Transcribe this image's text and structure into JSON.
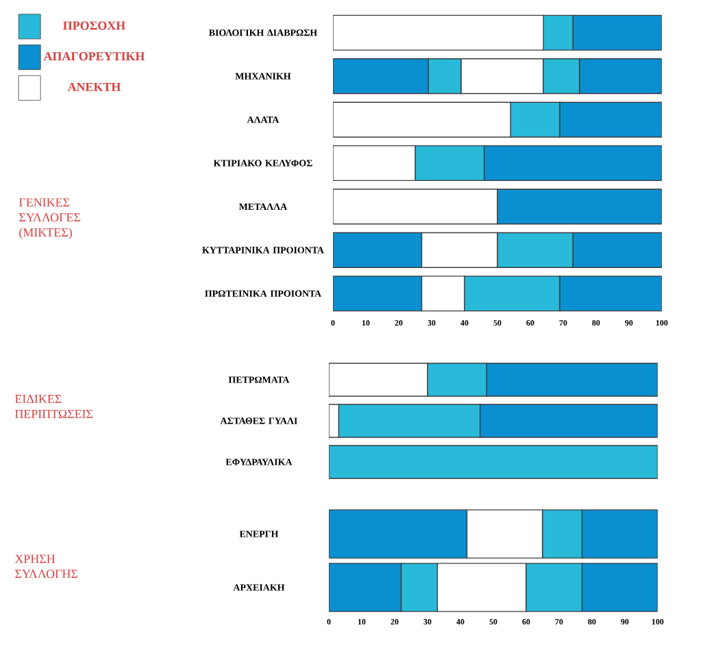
{
  "chart_data": [
    {
      "type": "bar",
      "orientation": "horizontal",
      "ylabel": "ΓΕΝΙΚΕΣ ΣΥΛΛΟΓΕΣ (ΜΙΚΤΕΣ)",
      "legend": "top left",
      "categories": [
        "ΒΙΟΛΟΓΙΚΗ ΔΙΑΒΡΩΣΗ",
        "ΜΗΧΑΝΙΚΗ",
        "ΑΛΑΤΑ",
        "ΚΤΙΡΙΑΚΟ ΚΕΛΥΦΟΣ",
        "ΜΕΤΑΛΛΑ",
        "ΚΥΤΤΑΡΙΝΙΚΑ ΠΡΟΙΟΝΤΑ",
        "ΠΡΩΤΕΙΝΙΚΑ ΠΡΟΙΟΝΤΑ"
      ],
      "xlim": [
        0,
        100
      ],
      "xticks": [
        0,
        10,
        20,
        30,
        40,
        50,
        60,
        70,
        80,
        90,
        100
      ],
      "series": [
        {
          "name": "ΠΡΟΣΟΧΗ",
          "color": "#29b9d9",
          "base": [
            64,
            29,
            54,
            25,
            null,
            50,
            40
          ],
          "values": [
            9,
            10,
            15,
            21,
            null,
            23,
            29
          ]
        },
        {
          "name": "ΑΠΑΓΟΡΕΥΤΙΚΗ",
          "color": "#0a8fd0",
          "base": [
            73,
            0,
            69,
            46,
            50,
            0,
            0
          ],
          "values": [
            27,
            29,
            31,
            54,
            50,
            27,
            27
          ]
        },
        {
          "name": "ΑΝΕΚΤΗ",
          "color": "#ffffff",
          "base": [
            0,
            39,
            0,
            0,
            0,
            27,
            27
          ],
          "values": [
            64,
            25,
            54,
            25,
            50,
            23,
            13
          ]
        },
        {
          "color": "#29b9d9",
          "base": [
            null,
            64,
            null,
            null,
            null,
            null,
            null
          ],
          "values": [
            null,
            11,
            null,
            null,
            null,
            null,
            null
          ]
        },
        {
          "color": "#0a8fd0",
          "base": [
            null,
            75,
            null,
            null,
            null,
            73,
            69
          ],
          "values": [
            null,
            25,
            null,
            null,
            null,
            27,
            31
          ]
        }
      ]
    },
    {
      "type": "bar",
      "orientation": "horizontal",
      "ylabel": "ΕΙΔΙΚΕΣ ΠΕΡΙΠΤΩΣΕΙΣ",
      "tick_labels": "y",
      "categories": [
        "ΠΕΤΡΩΜΑΤΑ",
        "ΑΣΤΑΘΕΣ ΓΥΑΛΙ",
        "ΕΦΥΔΡΑΥΛΙΚΑ"
      ],
      "xlim": [
        0,
        100
      ],
      "series": [
        {
          "color": "#29b9d9",
          "base": [
            30,
            3,
            0
          ],
          "values": [
            18,
            43,
            100
          ]
        },
        {
          "color": "#0a8fd0",
          "base": [
            48,
            46,
            null
          ],
          "values": [
            52,
            54,
            null
          ]
        },
        {
          "color": "#ffffff",
          "base": [
            0,
            0,
            null
          ],
          "values": [
            30,
            3,
            null
          ]
        }
      ]
    },
    {
      "type": "bar",
      "orientation": "horizontal",
      "ylabel": "ΧΡΗΣΗ ΣΥΛΛΟΓΗΣ",
      "categories": [
        "ΕΝΕΡΓΗ",
        "ΑΡΧΕΙΑΚΗ"
      ],
      "xlim": [
        0,
        100
      ],
      "xticks": [
        0,
        10,
        20,
        30,
        40,
        50,
        60,
        70,
        80,
        90,
        100
      ],
      "series": [
        {
          "color": "#0a8fd0",
          "base": [
            0,
            0
          ],
          "values": [
            42,
            22
          ]
        },
        {
          "color": "#ffffff",
          "base": [
            42,
            33
          ],
          "values": [
            23,
            27
          ]
        },
        {
          "color": "#29b9d9",
          "base": [
            65,
            22
          ],
          "values": [
            12,
            11
          ]
        },
        {
          "color": "#29b9d9",
          "base": [
            null,
            60
          ],
          "values": [
            null,
            17
          ]
        },
        {
          "color": "#0a8fd0",
          "base": [
            77,
            77
          ],
          "values": [
            23,
            23
          ]
        }
      ]
    }
  ]
}
